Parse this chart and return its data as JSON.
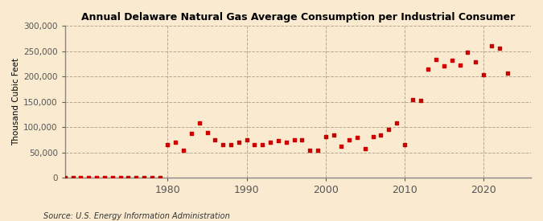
{
  "title": "Annual Delaware Natural Gas Average Consumption per Industrial Consumer",
  "ylabel": "Thousand Cubic Feet",
  "source": "Source: U.S. Energy Information Administration",
  "bg_color": "#faebd0",
  "plot_bg_color": "#faebd0",
  "marker_color": "#cc0000",
  "grid_color": "#b0a090",
  "ylim": [
    0,
    300000
  ],
  "yticks": [
    0,
    50000,
    100000,
    150000,
    200000,
    250000,
    300000
  ],
  "ytick_labels": [
    "0",
    "50,000",
    "100,000",
    "150,000",
    "200,000",
    "250,000",
    "300,000"
  ],
  "xlim": [
    1967,
    2026
  ],
  "xticks": [
    1980,
    1990,
    2000,
    2010,
    2020
  ],
  "years": [
    1967,
    1968,
    1969,
    1970,
    1971,
    1972,
    1973,
    1974,
    1975,
    1976,
    1977,
    1978,
    1979,
    1980,
    1981,
    1982,
    1983,
    1984,
    1985,
    1986,
    1987,
    1988,
    1989,
    1990,
    1991,
    1992,
    1993,
    1994,
    1995,
    1996,
    1997,
    1998,
    1999,
    2000,
    2001,
    2002,
    2003,
    2004,
    2005,
    2006,
    2007,
    2008,
    2009,
    2010,
    2011,
    2012,
    2013,
    2014,
    2015,
    2016,
    2017,
    2018,
    2019,
    2020,
    2021,
    2022,
    2023
  ],
  "values": [
    500,
    500,
    500,
    500,
    500,
    500,
    500,
    500,
    500,
    500,
    500,
    500,
    500,
    65000,
    70000,
    55000,
    88000,
    108000,
    90000,
    75000,
    65000,
    65000,
    70000,
    75000,
    65000,
    65000,
    70000,
    73000,
    70000,
    75000,
    75000,
    55000,
    55000,
    82000,
    85000,
    63000,
    75000,
    80000,
    58000,
    82000,
    85000,
    95000,
    108000,
    65000,
    154000,
    153000,
    214000,
    233000,
    220000,
    232000,
    222000,
    248000,
    228000,
    204000,
    261000,
    255000,
    207000
  ]
}
